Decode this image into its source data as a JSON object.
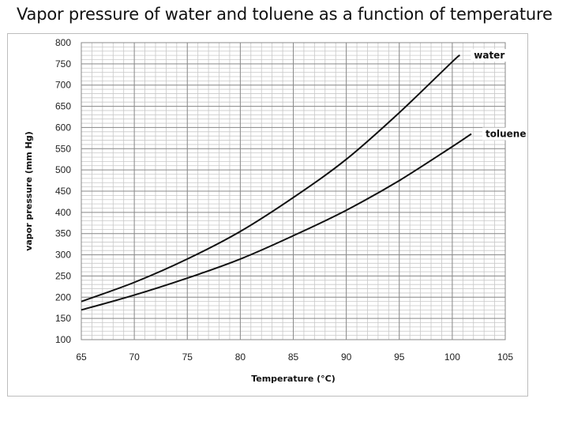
{
  "chart_data": {
    "type": "line",
    "title": "Vapor pressure of water and toluene as a function of temperature",
    "xlabel": "Temperature (°C)",
    "ylabel": "vapor pressure (mm Hg)",
    "xlim": [
      65,
      105
    ],
    "ylim": [
      100,
      800
    ],
    "xticks": [
      65,
      70,
      75,
      80,
      85,
      90,
      95,
      100,
      105
    ],
    "yticks": [
      100,
      150,
      200,
      250,
      300,
      350,
      400,
      450,
      500,
      550,
      600,
      650,
      700,
      750,
      800
    ],
    "grid": true,
    "series": [
      {
        "name": "water",
        "x": [
          65,
          70,
          75,
          80,
          85,
          90,
          95,
          100,
          100.7
        ],
        "y": [
          190,
          235,
          290,
          355,
          435,
          525,
          635,
          755,
          770
        ]
      },
      {
        "name": "toluene",
        "x": [
          65,
          70,
          75,
          80,
          85,
          90,
          95,
          100,
          101.8
        ],
        "y": [
          170,
          205,
          245,
          290,
          345,
          405,
          475,
          555,
          585
        ]
      }
    ]
  }
}
